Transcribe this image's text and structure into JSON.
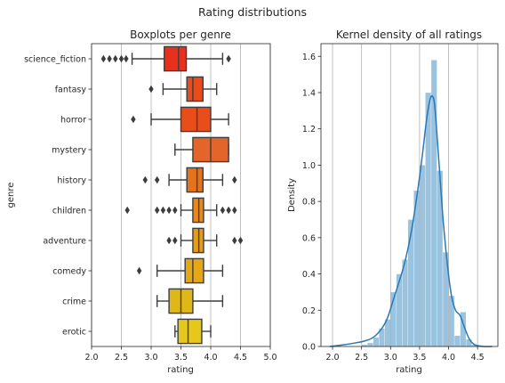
{
  "figure": {
    "suptitle": "Rating distributions"
  },
  "chart_data": [
    {
      "type": "boxplot",
      "title": "Boxplots per genre",
      "xlabel": "rating",
      "ylabel": "genre",
      "xlim": [
        2.0,
        5.0
      ],
      "xticks": [
        "2.0",
        "2.5",
        "3.0",
        "3.5",
        "4.0",
        "4.5",
        "5.0"
      ],
      "grid": "vertical",
      "categories": [
        "science_fiction",
        "fantasy",
        "horror",
        "mystery",
        "history",
        "children",
        "adventure",
        "comedy",
        "crime",
        "erotic"
      ],
      "boxes": [
        {
          "genre": "science_fiction",
          "q1": 3.22,
          "median": 3.46,
          "q3": 3.59,
          "whisker_low": 2.68,
          "whisker_high": 4.2,
          "outliers": [
            2.2,
            2.3,
            2.4,
            2.5,
            2.58,
            4.3
          ],
          "color": "#e8311d"
        },
        {
          "genre": "fantasy",
          "q1": 3.6,
          "median": 3.7,
          "q3": 3.87,
          "whisker_low": 3.2,
          "whisker_high": 4.1,
          "outliers": [
            3.0
          ],
          "color": "#ea4b1c"
        },
        {
          "genre": "horror",
          "q1": 3.5,
          "median": 3.77,
          "q3": 4.0,
          "whisker_low": 3.0,
          "whisker_high": 4.3,
          "outliers": [
            2.7
          ],
          "color": "#ea4d1a"
        },
        {
          "genre": "mystery",
          "q1": 3.7,
          "median": 4.0,
          "q3": 4.3,
          "whisker_low": 3.4,
          "whisker_high": 4.3,
          "outliers": [],
          "color": "#e4652a"
        },
        {
          "genre": "history",
          "q1": 3.6,
          "median": 3.77,
          "q3": 3.87,
          "whisker_low": 3.3,
          "whisker_high": 4.2,
          "outliers": [
            2.9,
            3.1,
            4.4
          ],
          "color": "#e4731b"
        },
        {
          "genre": "children",
          "q1": 3.7,
          "median": 3.8,
          "q3": 3.88,
          "whisker_low": 3.5,
          "whisker_high": 4.1,
          "outliers": [
            2.6,
            3.1,
            3.2,
            3.3,
            3.4,
            4.2,
            4.3,
            4.4
          ],
          "color": "#e8891b"
        },
        {
          "genre": "adventure",
          "q1": 3.7,
          "median": 3.8,
          "q3": 3.88,
          "whisker_low": 3.5,
          "whisker_high": 4.1,
          "outliers": [
            3.3,
            3.4,
            4.4,
            4.5
          ],
          "color": "#e69c1b"
        },
        {
          "genre": "comedy",
          "q1": 3.57,
          "median": 3.7,
          "q3": 3.88,
          "whisker_low": 3.1,
          "whisker_high": 4.2,
          "outliers": [
            2.8
          ],
          "color": "#e3a719"
        },
        {
          "genre": "crime",
          "q1": 3.3,
          "median": 3.5,
          "q3": 3.7,
          "whisker_low": 3.1,
          "whisker_high": 4.2,
          "outliers": [],
          "color": "#dfb717"
        },
        {
          "genre": "erotic",
          "q1": 3.45,
          "median": 3.62,
          "q3": 3.85,
          "whisker_low": 3.4,
          "whisker_high": 4.0,
          "outliers": [],
          "color": "#e5c81b"
        }
      ]
    },
    {
      "type": "histogram+kde",
      "title": "Kernel density of all ratings",
      "xlabel": "rating",
      "ylabel": "Density",
      "xlim": [
        1.8,
        4.85
      ],
      "ylim": [
        0,
        1.67
      ],
      "xticks": [
        "2.0",
        "2.5",
        "3.0",
        "3.5",
        "4.0",
        "4.5"
      ],
      "yticks": [
        "0.0",
        "0.2",
        "0.4",
        "0.6",
        "0.8",
        "1.0",
        "1.2",
        "1.4",
        "1.6"
      ],
      "grid": "vertical",
      "bar_color": "#9ac3e0",
      "line_color": "#2b78b2",
      "histogram": [
        {
          "x0": 2.5,
          "x1": 2.6,
          "density": 0.01
        },
        {
          "x0": 2.6,
          "x1": 2.7,
          "density": 0.02
        },
        {
          "x0": 2.7,
          "x1": 2.8,
          "density": 0.05
        },
        {
          "x0": 2.8,
          "x1": 2.9,
          "density": 0.1
        },
        {
          "x0": 2.9,
          "x1": 3.0,
          "density": 0.15
        },
        {
          "x0": 3.0,
          "x1": 3.1,
          "density": 0.3
        },
        {
          "x0": 3.1,
          "x1": 3.2,
          "density": 0.4
        },
        {
          "x0": 3.2,
          "x1": 3.3,
          "density": 0.48
        },
        {
          "x0": 3.3,
          "x1": 3.4,
          "density": 0.7
        },
        {
          "x0": 3.4,
          "x1": 3.5,
          "density": 0.86
        },
        {
          "x0": 3.5,
          "x1": 3.6,
          "density": 1.0
        },
        {
          "x0": 3.6,
          "x1": 3.7,
          "density": 1.4
        },
        {
          "x0": 3.7,
          "x1": 3.8,
          "density": 1.58
        },
        {
          "x0": 3.8,
          "x1": 3.9,
          "density": 0.97
        },
        {
          "x0": 3.9,
          "x1": 4.0,
          "density": 0.52
        },
        {
          "x0": 4.0,
          "x1": 4.1,
          "density": 0.28
        },
        {
          "x0": 4.1,
          "x1": 4.2,
          "density": 0.06
        },
        {
          "x0": 4.2,
          "x1": 4.3,
          "density": 0.19
        },
        {
          "x0": 4.3,
          "x1": 4.4,
          "density": 0.04
        },
        {
          "x0": 4.4,
          "x1": 4.5,
          "density": 0.01
        }
      ],
      "kde": {
        "x": [
          1.95,
          2.2,
          2.4,
          2.55,
          2.7,
          2.85,
          2.95,
          3.05,
          3.15,
          3.25,
          3.35,
          3.45,
          3.55,
          3.62,
          3.68,
          3.72,
          3.76,
          3.82,
          3.9,
          3.98,
          4.05,
          4.12,
          4.2,
          4.28,
          4.36,
          4.45,
          4.6,
          4.75
        ],
        "y": [
          0.0,
          0.01,
          0.02,
          0.03,
          0.05,
          0.1,
          0.16,
          0.26,
          0.36,
          0.47,
          0.62,
          0.82,
          1.06,
          1.25,
          1.36,
          1.38,
          1.33,
          1.08,
          0.72,
          0.45,
          0.28,
          0.2,
          0.17,
          0.1,
          0.04,
          0.01,
          0.0,
          0.0
        ]
      }
    }
  ]
}
